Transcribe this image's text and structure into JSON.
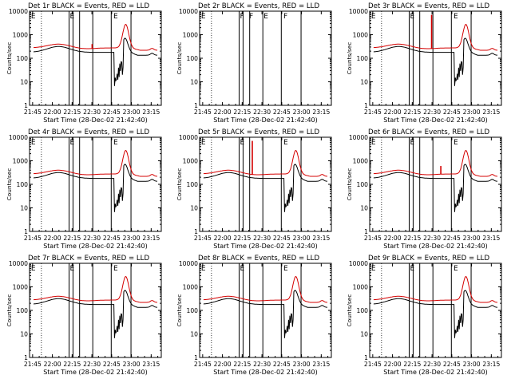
{
  "figure": {
    "colors": {
      "events": "#000000",
      "lld": "#d40000",
      "axis": "#000000",
      "background": "#ffffff"
    },
    "xlabel": "Start Time (28-Dec-02 21:42:40)",
    "ylabel": "Counts/sec"
  },
  "chart_data": [
    {
      "type": "line",
      "title": "Det 1r BLACK = Events, RED = LLD",
      "xlabel": "Start Time (28-Dec-02 21:42:40)",
      "ylabel": "Counts/sec",
      "x_ticks": [
        "21:45",
        "22:00",
        "22:15",
        "22:30",
        "22:45",
        "23:00",
        "23:15"
      ],
      "x_tick_minutes": [
        2.33,
        17.33,
        32.33,
        47.33,
        62.33,
        77.33,
        92.33
      ],
      "xlim_minutes": [
        0,
        100
      ],
      "y_ticks": [
        "1",
        "10",
        "100",
        "1000",
        "10000"
      ],
      "ylim": [
        1,
        10000
      ],
      "yscale": "log",
      "attenuator_lines_minutes": [
        30,
        33,
        38,
        48,
        62,
        77
      ],
      "dotted_line_minutes": [
        9
      ],
      "flags": [
        {
          "label": "E",
          "minute": 0.5
        },
        {
          "label": "E",
          "minute": 30
        },
        {
          "label": "E",
          "minute": 63
        }
      ],
      "series": [
        {
          "name": "Events",
          "color": "#000000",
          "profile": "events"
        },
        {
          "name": "LLD",
          "color": "#d40000",
          "profile": "lld",
          "spike": {
            "minute": 47.5,
            "value": 400
          }
        }
      ]
    },
    {
      "type": "line",
      "title": "Det 2r BLACK = Events, RED = LLD",
      "xlabel": "Start Time (28-Dec-02 21:42:40)",
      "ylabel": "Counts/sec",
      "x_ticks": [
        "21:45",
        "22:00",
        "22:15",
        "22:30",
        "22:45",
        "23:00",
        "23:15"
      ],
      "x_tick_minutes": [
        2.33,
        17.33,
        32.33,
        47.33,
        62.33,
        77.33,
        92.33
      ],
      "xlim_minutes": [
        0,
        100
      ],
      "y_ticks": [
        "1",
        "10",
        "100",
        "1000",
        "10000"
      ],
      "ylim": [
        1,
        10000
      ],
      "yscale": "log",
      "attenuator_lines_minutes": [
        30,
        33,
        38,
        48,
        62,
        77
      ],
      "dotted_line_minutes": [
        9
      ],
      "flags": [
        {
          "label": "E",
          "minute": 0.5
        },
        {
          "label": "F",
          "minute": 30
        },
        {
          "label": "F",
          "minute": 37
        },
        {
          "label": "E",
          "minute": 48
        },
        {
          "label": "F",
          "minute": 63
        }
      ],
      "series": []
    },
    {
      "type": "line",
      "title": "Det 3r BLACK = Events, RED = LLD",
      "xlabel": "Start Time (28-Dec-02 21:42:40)",
      "ylabel": "Counts/sec",
      "x_ticks": [
        "21:45",
        "22:00",
        "22:15",
        "22:30",
        "22:45",
        "23:00",
        "23:15"
      ],
      "x_tick_minutes": [
        2.33,
        17.33,
        32.33,
        47.33,
        62.33,
        77.33,
        92.33
      ],
      "xlim_minutes": [
        0,
        100
      ],
      "y_ticks": [
        "1",
        "10",
        "100",
        "1000",
        "10000"
      ],
      "ylim": [
        1,
        10000
      ],
      "yscale": "log",
      "attenuator_lines_minutes": [
        30,
        33,
        38,
        48,
        62,
        77
      ],
      "dotted_line_minutes": [
        9
      ],
      "flags": [
        {
          "label": "E",
          "minute": 0.5
        },
        {
          "label": "E",
          "minute": 30
        },
        {
          "label": "E",
          "minute": 63
        }
      ],
      "series": [
        {
          "name": "Events",
          "color": "#000000",
          "profile": "events"
        },
        {
          "name": "LLD",
          "color": "#d40000",
          "profile": "lld",
          "spike": {
            "minute": 47,
            "value": 7000
          }
        }
      ]
    },
    {
      "type": "line",
      "title": "Det 4r BLACK = Events, RED = LLD",
      "xlabel": "Start Time (28-Dec-02 21:42:40)",
      "ylabel": "Counts/sec",
      "x_ticks": [
        "21:45",
        "22:00",
        "22:15",
        "22:30",
        "22:45",
        "23:00",
        "23:15"
      ],
      "x_tick_minutes": [
        2.33,
        17.33,
        32.33,
        47.33,
        62.33,
        77.33,
        92.33
      ],
      "xlim_minutes": [
        0,
        100
      ],
      "y_ticks": [
        "1",
        "10",
        "100",
        "1000",
        "10000"
      ],
      "ylim": [
        1,
        10000
      ],
      "yscale": "log",
      "attenuator_lines_minutes": [
        30,
        33,
        38,
        48,
        62,
        77
      ],
      "dotted_line_minutes": [
        9
      ],
      "flags": [
        {
          "label": "E",
          "minute": 0.5
        },
        {
          "label": "E",
          "minute": 30
        },
        {
          "label": "E",
          "minute": 63
        }
      ],
      "series": [
        {
          "name": "Events",
          "color": "#000000",
          "profile": "events"
        },
        {
          "name": "LLD",
          "color": "#d40000",
          "profile": "lld"
        }
      ]
    },
    {
      "type": "line",
      "title": "Det 5r BLACK = Events, RED = LLD",
      "xlabel": "Start Time (28-Dec-02 21:42:40)",
      "ylabel": "Counts/sec",
      "x_ticks": [
        "21:45",
        "22:00",
        "22:15",
        "22:30",
        "22:45",
        "23:00",
        "23:15"
      ],
      "x_tick_minutes": [
        2.33,
        17.33,
        32.33,
        47.33,
        62.33,
        77.33,
        92.33
      ],
      "xlim_minutes": [
        0,
        100
      ],
      "y_ticks": [
        "1",
        "10",
        "100",
        "1000",
        "10000"
      ],
      "ylim": [
        1,
        10000
      ],
      "yscale": "log",
      "attenuator_lines_minutes": [
        30,
        33,
        38,
        48,
        62,
        77
      ],
      "dotted_line_minutes": [
        9
      ],
      "flags": [
        {
          "label": "E",
          "minute": 0.5
        },
        {
          "label": "E",
          "minute": 30
        },
        {
          "label": "E",
          "minute": 63
        }
      ],
      "series": [
        {
          "name": "Events",
          "color": "#000000",
          "profile": "events"
        },
        {
          "name": "LLD",
          "color": "#d40000",
          "profile": "lld",
          "spike": {
            "minute": 40,
            "value": 7000
          }
        }
      ]
    },
    {
      "type": "line",
      "title": "Det 6r BLACK = Events, RED = LLD",
      "xlabel": "Start Time (28-Dec-02 21:42:40)",
      "ylabel": "Counts/sec",
      "x_ticks": [
        "21:45",
        "22:00",
        "22:15",
        "22:30",
        "22:45",
        "23:00",
        "23:15"
      ],
      "x_tick_minutes": [
        2.33,
        17.33,
        32.33,
        47.33,
        62.33,
        77.33,
        92.33
      ],
      "xlim_minutes": [
        0,
        100
      ],
      "y_ticks": [
        "1",
        "10",
        "100",
        "1000",
        "10000"
      ],
      "ylim": [
        1,
        10000
      ],
      "yscale": "log",
      "attenuator_lines_minutes": [
        30,
        33,
        38,
        48,
        62,
        77
      ],
      "dotted_line_minutes": [
        9
      ],
      "flags": [
        {
          "label": "E",
          "minute": 0.5
        },
        {
          "label": "E",
          "minute": 30
        },
        {
          "label": "E",
          "minute": 63
        }
      ],
      "series": [
        {
          "name": "Events",
          "color": "#000000",
          "profile": "events"
        },
        {
          "name": "LLD",
          "color": "#d40000",
          "profile": "lld",
          "spike": {
            "minute": 54,
            "value": 600
          }
        }
      ]
    },
    {
      "type": "line",
      "title": "Det 7r BLACK = Events, RED = LLD",
      "xlabel": "Start Time (28-Dec-02 21:42:40)",
      "ylabel": "Counts/sec",
      "x_ticks": [
        "21:45",
        "22:00",
        "22:15",
        "22:30",
        "22:45",
        "23:00",
        "23:15"
      ],
      "x_tick_minutes": [
        2.33,
        17.33,
        32.33,
        47.33,
        62.33,
        77.33,
        92.33
      ],
      "xlim_minutes": [
        0,
        100
      ],
      "y_ticks": [
        "1",
        "10",
        "100",
        "1000",
        "10000"
      ],
      "ylim": [
        1,
        10000
      ],
      "yscale": "log",
      "attenuator_lines_minutes": [
        30,
        33,
        38,
        48,
        62,
        77
      ],
      "dotted_line_minutes": [
        9
      ],
      "flags": [
        {
          "label": "E",
          "minute": 0.5
        },
        {
          "label": "E",
          "minute": 30
        },
        {
          "label": "E",
          "minute": 63
        }
      ],
      "series": [
        {
          "name": "Events",
          "color": "#000000",
          "profile": "events"
        },
        {
          "name": "LLD",
          "color": "#d40000",
          "profile": "lld"
        }
      ]
    },
    {
      "type": "line",
      "title": "Det 8r BLACK = Events, RED = LLD",
      "xlabel": "Start Time (28-Dec-02 21:42:40)",
      "ylabel": "Counts/sec",
      "x_ticks": [
        "21:45",
        "22:00",
        "22:15",
        "22:30",
        "22:45",
        "23:00",
        "23:15"
      ],
      "x_tick_minutes": [
        2.33,
        17.33,
        32.33,
        47.33,
        62.33,
        77.33,
        92.33
      ],
      "xlim_minutes": [
        0,
        100
      ],
      "y_ticks": [
        "1",
        "10",
        "100",
        "1000",
        "10000"
      ],
      "ylim": [
        1,
        10000
      ],
      "yscale": "log",
      "attenuator_lines_minutes": [
        30,
        33,
        38,
        48,
        62,
        77
      ],
      "dotted_line_minutes": [
        9
      ],
      "flags": [
        {
          "label": "E",
          "minute": 0.5
        },
        {
          "label": "E",
          "minute": 30
        },
        {
          "label": "E",
          "minute": 63
        }
      ],
      "series": [
        {
          "name": "Events",
          "color": "#000000",
          "profile": "events"
        },
        {
          "name": "LLD",
          "color": "#d40000",
          "profile": "lld"
        }
      ]
    },
    {
      "type": "line",
      "title": "Det 9r BLACK = Events, RED = LLD",
      "xlabel": "Start Time (28-Dec-02 21:42:40)",
      "ylabel": "Counts/sec",
      "x_ticks": [
        "21:45",
        "22:00",
        "22:15",
        "22:30",
        "22:45",
        "23:00",
        "23:15"
      ],
      "x_tick_minutes": [
        2.33,
        17.33,
        32.33,
        47.33,
        62.33,
        77.33,
        92.33
      ],
      "xlim_minutes": [
        0,
        100
      ],
      "y_ticks": [
        "1",
        "10",
        "100",
        "1000",
        "10000"
      ],
      "ylim": [
        1,
        10000
      ],
      "yscale": "log",
      "attenuator_lines_minutes": [
        30,
        33,
        38,
        48,
        62,
        77
      ],
      "dotted_line_minutes": [
        9
      ],
      "flags": [
        {
          "label": "E",
          "minute": 0.5
        },
        {
          "label": "E",
          "minute": 30
        },
        {
          "label": "E",
          "minute": 63
        }
      ],
      "series": [
        {
          "name": "Events",
          "color": "#000000",
          "profile": "events"
        },
        {
          "name": "LLD",
          "color": "#d40000",
          "profile": "lld"
        }
      ]
    }
  ]
}
